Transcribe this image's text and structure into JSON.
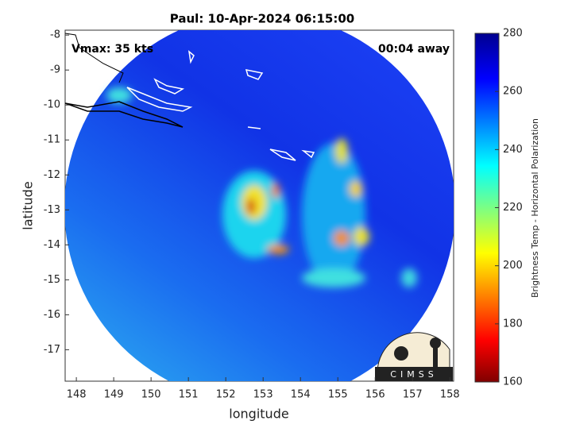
{
  "chart_data": {
    "type": "map",
    "title": "Paul: 10-Apr-2024 06:15:00",
    "xlabel": "longitude",
    "ylabel": "latitude",
    "xlim": [
      147.7,
      158.1
    ],
    "xticks": [
      148,
      149,
      150,
      151,
      152,
      153,
      154,
      155,
      156,
      157,
      158
    ],
    "ylim": [
      -17.9,
      -7.86
    ],
    "yticks": [
      -8,
      -9,
      -10,
      -11,
      -12,
      -13,
      -14,
      -15,
      -16,
      -17
    ],
    "annotations": [
      "Vmax: 35 kts",
      "00:04 away"
    ],
    "logo_text": "CIMSS",
    "colorbar": {
      "label": "Brightness Temp - Horizontal Polarization",
      "lim": [
        160,
        280
      ],
      "ticks": [
        160,
        180,
        200,
        220,
        240,
        260,
        280
      ]
    }
  }
}
